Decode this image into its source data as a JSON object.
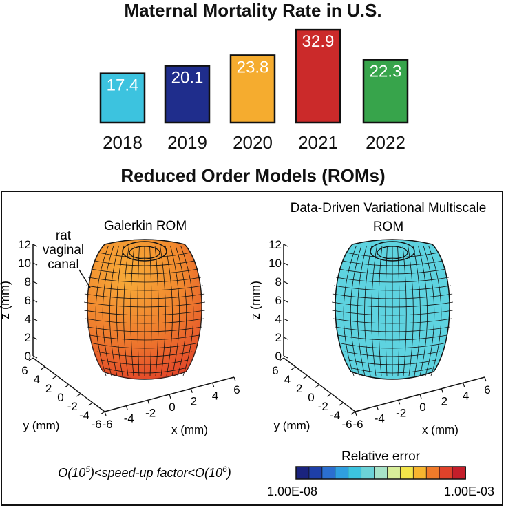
{
  "chart_data": [
    {
      "type": "bar",
      "title": "Maternal Mortality Rate in U.S.",
      "categories": [
        "2018",
        "2019",
        "2020",
        "2021",
        "2022"
      ],
      "values": [
        17.4,
        20.1,
        23.8,
        32.9,
        22.3
      ],
      "value_labels": [
        "17.4",
        "20.1",
        "23.8",
        "32.9",
        "22.3"
      ],
      "colors": [
        "#3cc3df",
        "#1f2d8c",
        "#f5ac2f",
        "#cb2a2a",
        "#37a44b"
      ],
      "xlabel": "",
      "ylabel": ""
    },
    {
      "type": "other",
      "title": "Reduced Order Models (ROMs)",
      "subplots": [
        {
          "title": "Galerkin ROM",
          "annotation": [
            "rat",
            "vaginal",
            "canal"
          ],
          "fill": "orange-red gradient",
          "zlabel": "z (mm)",
          "ylabel": "y (mm)",
          "xlabel": "x (mm)",
          "zticks": [
            "0",
            "2",
            "4",
            "6",
            "8",
            "10",
            "12"
          ],
          "yticks": [
            "6",
            "4",
            "2",
            "0",
            "-2",
            "-4",
            "-6"
          ],
          "xticks": [
            "-6",
            "-4",
            "-2",
            "0",
            "2",
            "4",
            "6"
          ]
        },
        {
          "title_lines": [
            "Data-Driven Variational Multiscale",
            "ROM"
          ],
          "fill": "cyan",
          "zlabel": "z (mm)",
          "ylabel": "y (mm)",
          "xlabel": "x (mm)",
          "zticks": [
            "0",
            "2",
            "4",
            "6",
            "8",
            "10",
            "12"
          ],
          "yticks": [
            "6",
            "4",
            "2",
            "0",
            "-2",
            "-4",
            "-6"
          ],
          "xticks": [
            "-6",
            "-4",
            "-2",
            "0",
            "2",
            "4",
            "6"
          ]
        }
      ],
      "speedup_prefix": "O(10",
      "speedup_exp1": "5",
      "speedup_mid": ")<speed-up factor<O(10",
      "speedup_exp2": "6",
      "speedup_suffix": ")",
      "colorbar": {
        "title": "Relative error",
        "min_label": "1.00E-08",
        "max_label": "1.00E-03",
        "colors": [
          "#1a237e",
          "#1e3fa8",
          "#2b6fd0",
          "#2f9fe0",
          "#3cc3df",
          "#6cd3d8",
          "#a7e3c8",
          "#d8ee9a",
          "#f3e54a",
          "#f7b52f",
          "#f07a2a",
          "#e0422a",
          "#c41e2a"
        ]
      }
    }
  ],
  "titles": {
    "bar": "Maternal Mortality Rate in U.S.",
    "rom": "Reduced Order Models (ROMs)"
  }
}
